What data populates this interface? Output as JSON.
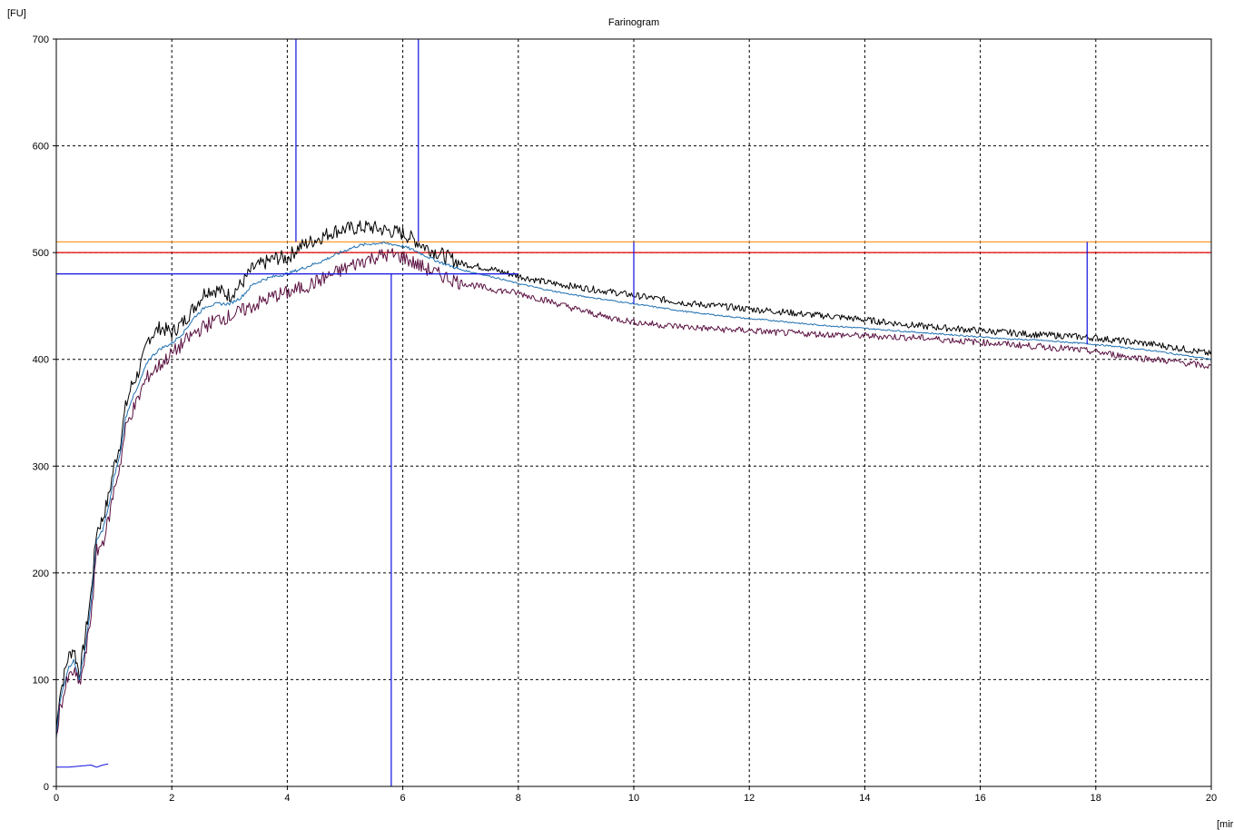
{
  "chart_data": {
    "type": "line",
    "title": "Farinogram",
    "ylabel": "[FU]",
    "xlabel": "[mir",
    "xlim": [
      0,
      20
    ],
    "ylim": [
      0,
      700
    ],
    "xticks": [
      0,
      2,
      4,
      6,
      8,
      10,
      12,
      14,
      16,
      18,
      20
    ],
    "yticks": [
      0,
      100,
      200,
      300,
      400,
      500,
      600,
      700
    ],
    "grid": true,
    "colors": {
      "upper": "#000000",
      "middle": "#1f6fb0",
      "lower": "#5a1040",
      "marker": "#1010e0",
      "line500": "#e00000",
      "line510": "#ff9a2e",
      "axis": "#000000",
      "grid": "#000000"
    },
    "series": [
      {
        "key": "upper",
        "x": [
          0,
          0.05,
          0.1,
          0.2,
          0.3,
          0.4,
          0.5,
          0.6,
          0.7,
          0.8,
          0.9,
          1.0,
          1.1,
          1.2,
          1.3,
          1.4,
          1.5,
          1.6,
          1.8,
          2.0,
          2.2,
          2.4,
          2.6,
          2.8,
          3.0,
          3.2,
          3.4,
          3.6,
          3.8,
          4.0,
          4.2,
          4.4,
          4.6,
          4.8,
          5.0,
          5.2,
          5.4,
          5.6,
          5.8,
          6.0,
          6.2,
          6.4,
          6.6,
          6.8,
          7.0,
          7.5,
          8.0,
          8.5,
          9.0,
          9.5,
          10.0,
          10.5,
          11.0,
          11.5,
          12.0,
          12.5,
          13.0,
          13.5,
          14.0,
          14.5,
          15.0,
          15.5,
          16.0,
          16.5,
          17.0,
          17.5,
          18.0,
          18.5,
          19.0,
          19.5,
          20.0
        ],
        "y": [
          50,
          85,
          95,
          120,
          130,
          105,
          140,
          180,
          240,
          250,
          270,
          300,
          320,
          355,
          375,
          385,
          400,
          420,
          430,
          425,
          435,
          450,
          465,
          465,
          460,
          470,
          485,
          490,
          495,
          495,
          505,
          510,
          515,
          520,
          522,
          523,
          524,
          522,
          520,
          518,
          512,
          505,
          500,
          495,
          490,
          485,
          478,
          472,
          468,
          464,
          460,
          456,
          452,
          450,
          447,
          445,
          442,
          440,
          437,
          434,
          431,
          429,
          427,
          425,
          423,
          422,
          420,
          417,
          414,
          410,
          405
        ],
        "noise": 7
      },
      {
        "key": "middle",
        "x": [
          0,
          0.05,
          0.1,
          0.2,
          0.3,
          0.4,
          0.5,
          0.6,
          0.7,
          0.8,
          0.9,
          1.0,
          1.1,
          1.2,
          1.3,
          1.4,
          1.5,
          1.6,
          1.8,
          2.0,
          2.2,
          2.4,
          2.6,
          2.8,
          3.0,
          3.2,
          3.4,
          3.6,
          3.8,
          4.0,
          4.2,
          4.4,
          4.6,
          4.8,
          5.0,
          5.2,
          5.4,
          5.6,
          5.8,
          6.0,
          6.2,
          6.4,
          6.6,
          6.8,
          7.0,
          7.5,
          8.0,
          8.5,
          9.0,
          9.5,
          10.0,
          10.5,
          11.0,
          11.5,
          12.0,
          12.5,
          13.0,
          13.5,
          14.0,
          14.5,
          15.0,
          15.5,
          16.0,
          16.5,
          17.0,
          17.5,
          18.0,
          18.5,
          19.0,
          19.5,
          20.0
        ],
        "y": [
          45,
          75,
          88,
          110,
          118,
          100,
          130,
          170,
          230,
          240,
          260,
          290,
          310,
          345,
          362,
          372,
          387,
          400,
          410,
          415,
          425,
          440,
          450,
          452,
          452,
          458,
          470,
          475,
          478,
          480,
          484,
          488,
          492,
          497,
          502,
          506,
          508,
          509,
          508,
          506,
          502,
          497,
          492,
          488,
          484,
          478,
          471,
          465,
          460,
          456,
          452,
          448,
          444,
          441,
          438,
          436,
          433,
          431,
          429,
          427,
          425,
          423,
          421,
          419,
          418,
          416,
          414,
          411,
          408,
          404,
          400
        ],
        "noise": 1.5
      },
      {
        "key": "lower",
        "x": [
          0,
          0.05,
          0.1,
          0.2,
          0.3,
          0.4,
          0.5,
          0.6,
          0.7,
          0.8,
          0.9,
          1.0,
          1.1,
          1.2,
          1.3,
          1.4,
          1.5,
          1.6,
          1.8,
          2.0,
          2.2,
          2.4,
          2.6,
          2.8,
          3.0,
          3.2,
          3.4,
          3.6,
          3.8,
          4.0,
          4.2,
          4.4,
          4.6,
          4.8,
          5.0,
          5.2,
          5.4,
          5.6,
          5.8,
          6.0,
          6.2,
          6.4,
          6.6,
          6.8,
          7.0,
          7.5,
          8.0,
          8.5,
          9.0,
          9.5,
          10.0,
          10.5,
          11.0,
          11.5,
          12.0,
          12.5,
          13.0,
          13.5,
          14.0,
          14.5,
          15.0,
          15.5,
          16.0,
          16.5,
          17.0,
          17.5,
          18.0,
          18.5,
          19.0,
          19.5,
          20.0
        ],
        "y": [
          45,
          70,
          80,
          100,
          108,
          95,
          120,
          160,
          220,
          228,
          248,
          278,
          300,
          335,
          350,
          360,
          375,
          385,
          395,
          405,
          415,
          425,
          432,
          438,
          440,
          445,
          450,
          455,
          460,
          462,
          466,
          470,
          475,
          480,
          485,
          490,
          494,
          497,
          498,
          496,
          490,
          485,
          480,
          476,
          472,
          466,
          462,
          455,
          447,
          440,
          435,
          432,
          430,
          428,
          427,
          425,
          424,
          423,
          422,
          421,
          420,
          418,
          416,
          414,
          412,
          410,
          407,
          403,
          400,
          397,
          393
        ],
        "noise": 7
      },
      {
        "key": "marker",
        "x": [
          0,
          0.05,
          0.2,
          0.4,
          0.6,
          0.7,
          0.8,
          0.9
        ],
        "y": [
          18,
          18,
          18,
          19,
          20,
          18,
          20,
          21
        ],
        "noise": 0
      }
    ],
    "hlines": [
      {
        "y": 510,
        "key": "line510"
      },
      {
        "y": 500,
        "key": "line500"
      }
    ],
    "markers": {
      "vlines_full": [
        4.15,
        6.27
      ],
      "vline_down": {
        "x": 5.8,
        "from": 480,
        "to": 0
      },
      "hline_left": {
        "y": 480,
        "from": 0,
        "to": 8
      },
      "vlines_short": [
        {
          "x": 10.0,
          "from": 510,
          "to": 452
        },
        {
          "x": 17.85,
          "from": 510,
          "to": 414
        }
      ]
    }
  }
}
